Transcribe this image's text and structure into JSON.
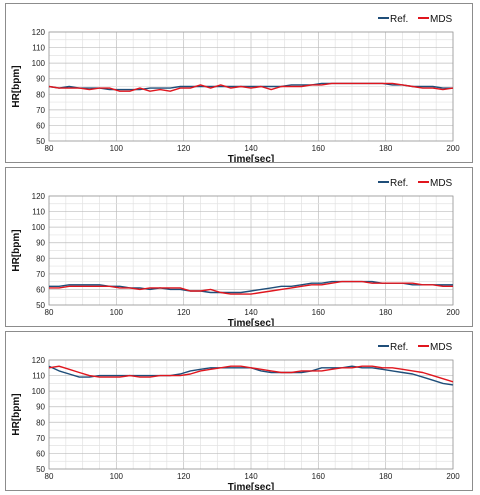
{
  "chart_data": [
    {
      "type": "line",
      "xlabel": "Time[sec]",
      "ylabel": "HR[bpm]",
      "xlim": [
        80,
        200
      ],
      "ylim": [
        50,
        120
      ],
      "xticks": [
        80,
        100,
        120,
        140,
        160,
        180,
        200
      ],
      "yticks": [
        50,
        60,
        70,
        80,
        90,
        100,
        110,
        120
      ],
      "grid": true,
      "legend_position": "top-right",
      "series": [
        {
          "name": "Ref.",
          "color": "#1f4e79",
          "x": [
            80,
            83,
            86,
            89,
            92,
            95,
            98,
            101,
            104,
            107,
            110,
            113,
            116,
            119,
            122,
            125,
            128,
            131,
            134,
            137,
            140,
            143,
            146,
            149,
            152,
            155,
            158,
            161,
            164,
            167,
            170,
            173,
            176,
            179,
            182,
            185,
            188,
            191,
            194,
            197,
            200
          ],
          "y": [
            85,
            84,
            85,
            84,
            84,
            84,
            83,
            83,
            83,
            83,
            84,
            84,
            84,
            85,
            85,
            85,
            85,
            85,
            85,
            85,
            85,
            85,
            85,
            85,
            86,
            86,
            86,
            87,
            87,
            87,
            87,
            87,
            87,
            87,
            86,
            86,
            85,
            85,
            85,
            84,
            84
          ]
        },
        {
          "name": "MDS",
          "color": "#e0161e",
          "x": [
            80,
            83,
            86,
            89,
            92,
            95,
            98,
            101,
            104,
            107,
            110,
            113,
            116,
            119,
            122,
            125,
            128,
            131,
            134,
            137,
            140,
            143,
            146,
            149,
            152,
            155,
            158,
            161,
            164,
            167,
            170,
            173,
            176,
            179,
            182,
            185,
            188,
            191,
            194,
            197,
            200
          ],
          "y": [
            85,
            84,
            84,
            84,
            83,
            84,
            84,
            82,
            82,
            84,
            82,
            83,
            82,
            84,
            84,
            86,
            84,
            86,
            84,
            85,
            84,
            85,
            83,
            85,
            85,
            85,
            86,
            86,
            87,
            87,
            87,
            87,
            87,
            87,
            87,
            86,
            85,
            84,
            84,
            83,
            84
          ]
        }
      ]
    },
    {
      "type": "line",
      "xlabel": "Time[sec]",
      "ylabel": "HR[bpm]",
      "xlim": [
        80,
        200
      ],
      "ylim": [
        50,
        120
      ],
      "xticks": [
        80,
        100,
        120,
        140,
        160,
        180,
        200
      ],
      "yticks": [
        50,
        60,
        70,
        80,
        90,
        100,
        110,
        120
      ],
      "grid": true,
      "legend_position": "top-right",
      "series": [
        {
          "name": "Ref.",
          "color": "#1f4e79",
          "x": [
            80,
            83,
            86,
            89,
            92,
            95,
            98,
            101,
            104,
            107,
            110,
            113,
            116,
            119,
            122,
            125,
            128,
            131,
            134,
            137,
            140,
            143,
            146,
            149,
            152,
            155,
            158,
            161,
            164,
            167,
            170,
            173,
            176,
            179,
            182,
            185,
            188,
            191,
            194,
            197,
            200
          ],
          "y": [
            62,
            62,
            63,
            63,
            63,
            63,
            62,
            62,
            61,
            61,
            60,
            61,
            60,
            60,
            59,
            59,
            58,
            58,
            58,
            58,
            59,
            60,
            61,
            62,
            62,
            63,
            64,
            64,
            65,
            65,
            65,
            65,
            65,
            64,
            64,
            64,
            63,
            63,
            63,
            63,
            63
          ]
        },
        {
          "name": "MDS",
          "color": "#e0161e",
          "x": [
            80,
            83,
            86,
            89,
            92,
            95,
            98,
            101,
            104,
            107,
            110,
            113,
            116,
            119,
            122,
            125,
            128,
            131,
            134,
            137,
            140,
            143,
            146,
            149,
            152,
            155,
            158,
            161,
            164,
            167,
            170,
            173,
            176,
            179,
            182,
            185,
            188,
            191,
            194,
            197,
            200
          ],
          "y": [
            61,
            61,
            62,
            62,
            62,
            62,
            62,
            61,
            61,
            60,
            61,
            61,
            61,
            61,
            59,
            59,
            60,
            58,
            57,
            57,
            57,
            58,
            59,
            60,
            61,
            62,
            63,
            63,
            64,
            65,
            65,
            65,
            64,
            64,
            64,
            64,
            64,
            63,
            63,
            62,
            62
          ]
        }
      ]
    },
    {
      "type": "line",
      "xlabel": "Time[sec]",
      "ylabel": "HR[bpm]",
      "xlim": [
        80,
        200
      ],
      "ylim": [
        50,
        120
      ],
      "xticks": [
        80,
        100,
        120,
        140,
        160,
        180,
        200
      ],
      "yticks": [
        50,
        60,
        70,
        80,
        90,
        100,
        110,
        120
      ],
      "grid": true,
      "legend_position": "top-right",
      "series": [
        {
          "name": "Ref.",
          "color": "#1f4e79",
          "x": [
            80,
            83,
            86,
            89,
            92,
            95,
            98,
            101,
            104,
            107,
            110,
            113,
            116,
            119,
            122,
            125,
            128,
            131,
            134,
            137,
            140,
            143,
            146,
            149,
            152,
            155,
            158,
            161,
            164,
            167,
            170,
            173,
            176,
            179,
            182,
            185,
            188,
            191,
            194,
            197,
            200
          ],
          "y": [
            116,
            113,
            111,
            109,
            109,
            110,
            110,
            110,
            110,
            110,
            110,
            110,
            110,
            111,
            113,
            114,
            115,
            115,
            115,
            115,
            115,
            113,
            112,
            112,
            112,
            112,
            113,
            115,
            115,
            115,
            116,
            115,
            115,
            114,
            113,
            112,
            111,
            109,
            107,
            105,
            104
          ]
        },
        {
          "name": "MDS",
          "color": "#e0161e",
          "x": [
            80,
            83,
            86,
            89,
            92,
            95,
            98,
            101,
            104,
            107,
            110,
            113,
            116,
            119,
            122,
            125,
            128,
            131,
            134,
            137,
            140,
            143,
            146,
            149,
            152,
            155,
            158,
            161,
            164,
            167,
            170,
            173,
            176,
            179,
            182,
            185,
            188,
            191,
            194,
            197,
            200
          ],
          "y": [
            115,
            116,
            114,
            112,
            110,
            109,
            109,
            109,
            110,
            109,
            109,
            110,
            110,
            110,
            111,
            113,
            114,
            115,
            116,
            116,
            115,
            114,
            113,
            112,
            112,
            113,
            113,
            113,
            114,
            115,
            115,
            116,
            116,
            115,
            115,
            114,
            113,
            112,
            110,
            108,
            106
          ]
        }
      ]
    }
  ]
}
